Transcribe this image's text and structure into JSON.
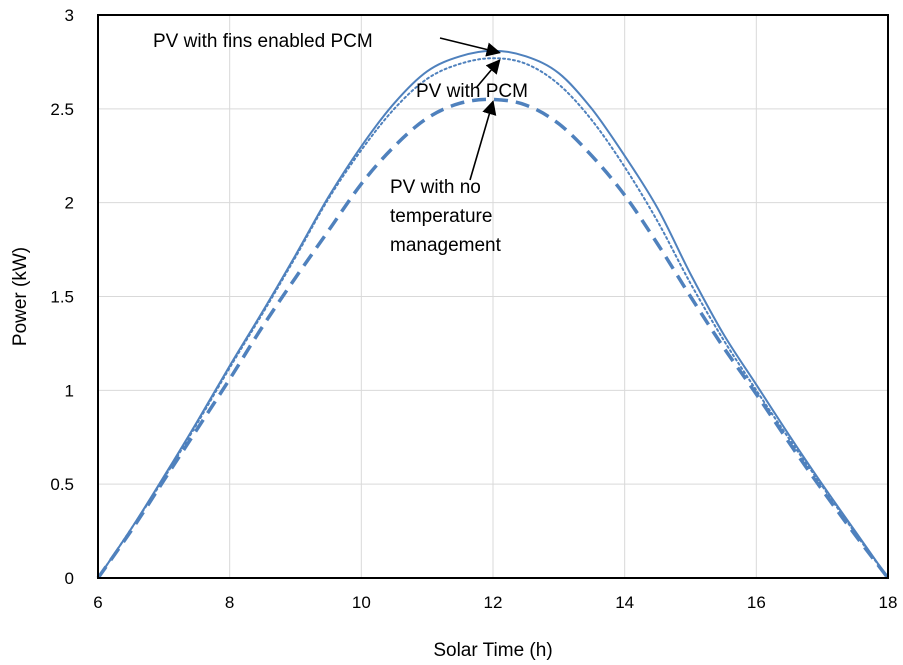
{
  "chart_data": {
    "type": "line",
    "xlabel": "Solar Time (h)",
    "ylabel": "Power (kW)",
    "xlim": [
      6,
      18
    ],
    "ylim": [
      0,
      3
    ],
    "xticks": [
      6,
      8,
      10,
      12,
      14,
      16,
      18
    ],
    "yticks": [
      0,
      0.5,
      1,
      1.5,
      2,
      2.5,
      3
    ],
    "grid": true,
    "legend": "none",
    "series": [
      {
        "label": "PV with fins enabled PCM",
        "style": "solid",
        "color": "#4f81bd",
        "x": [
          6,
          6.5,
          7,
          7.5,
          8,
          8.5,
          9,
          9.5,
          10,
          10.5,
          11,
          11.5,
          12,
          12.5,
          13,
          13.5,
          14,
          14.5,
          15,
          15.5,
          16,
          16.5,
          17,
          17.5,
          18
        ],
        "y": [
          0,
          0.26,
          0.54,
          0.83,
          1.13,
          1.42,
          1.72,
          2.03,
          2.3,
          2.53,
          2.7,
          2.78,
          2.81,
          2.78,
          2.69,
          2.5,
          2.25,
          1.97,
          1.62,
          1.3,
          1.03,
          0.76,
          0.5,
          0.25,
          0
        ]
      },
      {
        "label": "PV with PCM",
        "style": "dotted",
        "color": "#4f81bd",
        "x": [
          6,
          6.5,
          7,
          7.5,
          8,
          8.5,
          9,
          9.5,
          10,
          10.5,
          11,
          11.5,
          12,
          12.5,
          13,
          13.5,
          14,
          14.5,
          15,
          15.5,
          16,
          16.5,
          17,
          17.5,
          18
        ],
        "y": [
          0,
          0.26,
          0.53,
          0.82,
          1.12,
          1.41,
          1.71,
          2.02,
          2.28,
          2.5,
          2.66,
          2.74,
          2.77,
          2.74,
          2.63,
          2.44,
          2.19,
          1.9,
          1.57,
          1.27,
          1.0,
          0.74,
          0.49,
          0.24,
          0
        ]
      },
      {
        "label": "PV with no temperature management",
        "style": "dashed",
        "color": "#4f81bd",
        "x": [
          6,
          6.5,
          7,
          7.5,
          8,
          8.5,
          9,
          9.5,
          10,
          10.5,
          11,
          11.5,
          12,
          12.5,
          13,
          13.5,
          14,
          14.5,
          15,
          15.5,
          16,
          16.5,
          17,
          17.5,
          18
        ],
        "y": [
          0,
          0.25,
          0.52,
          0.79,
          1.06,
          1.34,
          1.6,
          1.85,
          2.1,
          2.3,
          2.45,
          2.53,
          2.55,
          2.52,
          2.42,
          2.25,
          2.04,
          1.78,
          1.5,
          1.23,
          0.98,
          0.72,
          0.47,
          0.23,
          0
        ]
      }
    ],
    "annotations": [
      {
        "lines": [
          "PV with fins enabled PCM"
        ],
        "target_series": 0,
        "target_x": 12.1,
        "target_y": 2.81
      },
      {
        "lines": [
          "PV with PCM"
        ],
        "target_series": 1,
        "target_x": 12.1,
        "target_y": 2.77
      },
      {
        "lines": [
          "PV with no",
          "temperature",
          "management"
        ],
        "target_series": 2,
        "target_x": 12.0,
        "target_y": 2.55
      }
    ]
  }
}
